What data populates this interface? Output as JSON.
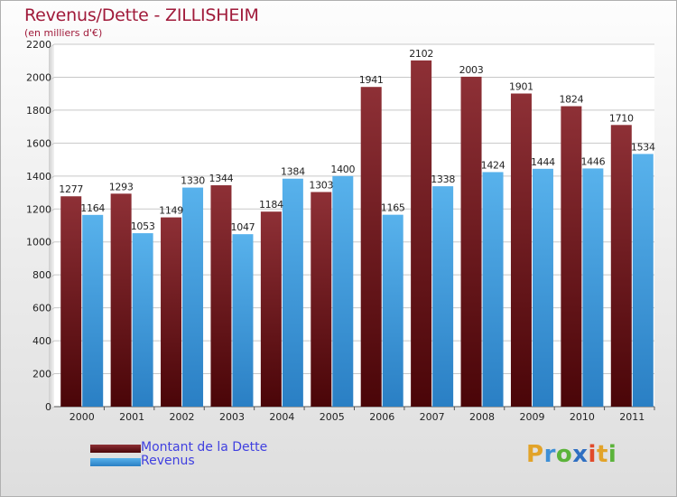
{
  "header": {
    "title": "Revenus/Dette - ZILLISHEIM",
    "subtitle": "(en milliers d'€)"
  },
  "chart_data": {
    "type": "bar",
    "title": "Revenus/Dette - ZILLISHEIM",
    "ylabel": "(en milliers d'€)",
    "xlabel": "",
    "categories": [
      "2000",
      "2001",
      "2002",
      "2003",
      "2004",
      "2005",
      "2006",
      "2007",
      "2008",
      "2009",
      "2010",
      "2011"
    ],
    "series": [
      {
        "name": "Montant de la Dette",
        "color": "#7a1e22",
        "values": [
          1277,
          1293,
          1149,
          1344,
          1184,
          1303,
          1941,
          2102,
          2003,
          1901,
          1824,
          1710
        ],
        "labels": [
          "1277",
          "1293",
          "1149",
          "1344",
          "1184",
          "1303",
          "1941",
          "2102",
          "2003",
          "1901",
          "1824",
          "1710"
        ]
      },
      {
        "name": "Revenus",
        "color": "#3f9ee0",
        "values": [
          1164,
          1053,
          1330,
          1047,
          1384,
          1400,
          1165,
          1338,
          1424,
          1444,
          1446,
          1534
        ],
        "labels": [
          "1164",
          "1053",
          "1330",
          "1047",
          "1384",
          "1400",
          "1165",
          "1338",
          "1424",
          "1444",
          "1446",
          "1534"
        ]
      }
    ],
    "ylim": [
      0,
      2200
    ],
    "yticks": [
      0,
      200,
      400,
      600,
      800,
      1000,
      1200,
      1400,
      1600,
      1800,
      2000,
      2200
    ],
    "grid": true,
    "legend_position": "bottom-left"
  },
  "legend": [
    {
      "label": "Montant de la Dette",
      "color": "#6a0f14"
    },
    {
      "label": "Revenus",
      "color": "#3f9ee0"
    }
  ],
  "logo": {
    "letters": [
      "P",
      "r",
      "o",
      "x",
      "i",
      "t",
      "i"
    ],
    "colors": [
      "#e2a329",
      "#3d8fd6",
      "#5bb33a",
      "#2f6fc2",
      "#e14a2a",
      "#e2a329",
      "#5bb33a"
    ]
  }
}
